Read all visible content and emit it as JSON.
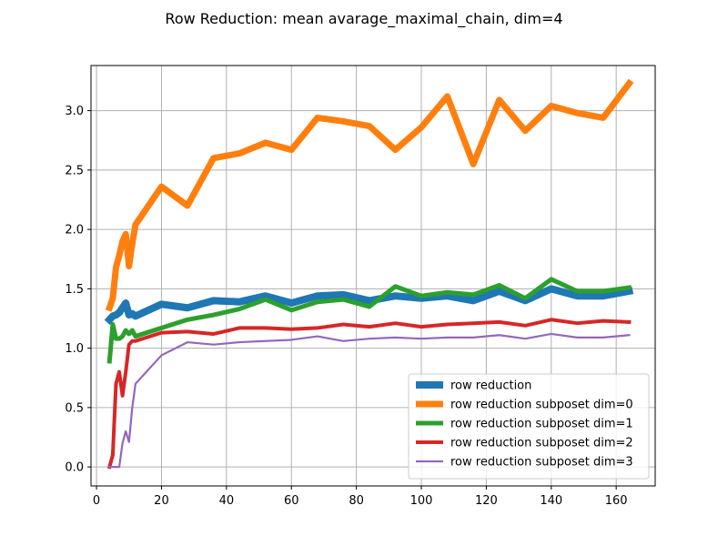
{
  "chart_data": {
    "type": "line",
    "title": "Row Reduction: mean avarage_maximal_chain, dim=4",
    "xlabel": "",
    "ylabel": "",
    "xlim": [
      -1.7,
      172.0
    ],
    "ylim": [
      -0.16,
      3.38
    ],
    "xticks": [
      0,
      20,
      40,
      60,
      80,
      100,
      120,
      140,
      160
    ],
    "yticks": [
      0.0,
      0.5,
      1.0,
      1.5,
      2.0,
      2.5,
      3.0
    ],
    "grid": true,
    "legend_position": "lower-right",
    "series": [
      {
        "name": "row reduction",
        "color": "#1f77b4",
        "width": 8,
        "points": [
          [
            4,
            1.24
          ],
          [
            5,
            1.27
          ],
          [
            6,
            1.28
          ],
          [
            7,
            1.3
          ],
          [
            8,
            1.34
          ],
          [
            9,
            1.38
          ],
          [
            10,
            1.28
          ],
          [
            11,
            1.29
          ],
          [
            12,
            1.27
          ],
          [
            20,
            1.37
          ],
          [
            28,
            1.34
          ],
          [
            36,
            1.4
          ],
          [
            44,
            1.39
          ],
          [
            52,
            1.44
          ],
          [
            60,
            1.38
          ],
          [
            68,
            1.44
          ],
          [
            76,
            1.45
          ],
          [
            84,
            1.4
          ],
          [
            92,
            1.44
          ],
          [
            100,
            1.42
          ],
          [
            108,
            1.44
          ],
          [
            116,
            1.4
          ],
          [
            124,
            1.48
          ],
          [
            132,
            1.4
          ],
          [
            140,
            1.5
          ],
          [
            148,
            1.44
          ],
          [
            156,
            1.44
          ],
          [
            164,
            1.48
          ]
        ]
      },
      {
        "name": "row reduction subposet dim=0",
        "color": "#ff7f0e",
        "width": 7,
        "points": [
          [
            4,
            1.34
          ],
          [
            5,
            1.42
          ],
          [
            6,
            1.68
          ],
          [
            7,
            1.78
          ],
          [
            8,
            1.9
          ],
          [
            9,
            1.96
          ],
          [
            10,
            1.69
          ],
          [
            11,
            1.88
          ],
          [
            12,
            2.04
          ],
          [
            20,
            2.36
          ],
          [
            28,
            2.2
          ],
          [
            36,
            2.6
          ],
          [
            44,
            2.64
          ],
          [
            52,
            2.73
          ],
          [
            60,
            2.67
          ],
          [
            68,
            2.94
          ],
          [
            76,
            2.91
          ],
          [
            84,
            2.87
          ],
          [
            92,
            2.67
          ],
          [
            100,
            2.86
          ],
          [
            108,
            3.12
          ],
          [
            116,
            2.55
          ],
          [
            124,
            3.09
          ],
          [
            132,
            2.83
          ],
          [
            140,
            3.04
          ],
          [
            148,
            2.98
          ],
          [
            156,
            2.94
          ],
          [
            164,
            3.23
          ]
        ]
      },
      {
        "name": "row reduction subposet dim=1",
        "color": "#2ca02c",
        "width": 5,
        "points": [
          [
            4,
            0.89
          ],
          [
            5,
            1.2
          ],
          [
            6,
            1.08
          ],
          [
            7,
            1.08
          ],
          [
            8,
            1.1
          ],
          [
            9,
            1.15
          ],
          [
            10,
            1.12
          ],
          [
            11,
            1.15
          ],
          [
            12,
            1.1
          ],
          [
            20,
            1.17
          ],
          [
            28,
            1.24
          ],
          [
            36,
            1.28
          ],
          [
            44,
            1.33
          ],
          [
            52,
            1.41
          ],
          [
            60,
            1.32
          ],
          [
            68,
            1.39
          ],
          [
            76,
            1.41
          ],
          [
            84,
            1.35
          ],
          [
            92,
            1.52
          ],
          [
            100,
            1.44
          ],
          [
            108,
            1.47
          ],
          [
            116,
            1.45
          ],
          [
            124,
            1.53
          ],
          [
            132,
            1.42
          ],
          [
            140,
            1.58
          ],
          [
            148,
            1.48
          ],
          [
            156,
            1.48
          ],
          [
            164,
            1.51
          ]
        ]
      },
      {
        "name": "row reduction subposet dim=2",
        "color": "#d62728",
        "width": 4,
        "points": [
          [
            4,
            0.0
          ],
          [
            5,
            0.1
          ],
          [
            6,
            0.7
          ],
          [
            7,
            0.8
          ],
          [
            8,
            0.6
          ],
          [
            9,
            0.8
          ],
          [
            10,
            1.03
          ],
          [
            11,
            1.06
          ],
          [
            12,
            1.06
          ],
          [
            20,
            1.13
          ],
          [
            28,
            1.14
          ],
          [
            36,
            1.12
          ],
          [
            44,
            1.17
          ],
          [
            52,
            1.17
          ],
          [
            60,
            1.16
          ],
          [
            68,
            1.17
          ],
          [
            76,
            1.2
          ],
          [
            84,
            1.18
          ],
          [
            92,
            1.21
          ],
          [
            100,
            1.18
          ],
          [
            108,
            1.2
          ],
          [
            116,
            1.21
          ],
          [
            124,
            1.22
          ],
          [
            132,
            1.19
          ],
          [
            140,
            1.24
          ],
          [
            148,
            1.21
          ],
          [
            156,
            1.23
          ],
          [
            164,
            1.22
          ]
        ]
      },
      {
        "name": "row reduction subposet dim=3",
        "color": "#9467bd",
        "width": 2.2,
        "points": [
          [
            4,
            0.0
          ],
          [
            5,
            0.0
          ],
          [
            6,
            0.0
          ],
          [
            7,
            0.0
          ],
          [
            8,
            0.2
          ],
          [
            9,
            0.3
          ],
          [
            10,
            0.21
          ],
          [
            11,
            0.5
          ],
          [
            12,
            0.7
          ],
          [
            20,
            0.94
          ],
          [
            28,
            1.05
          ],
          [
            36,
            1.03
          ],
          [
            44,
            1.05
          ],
          [
            52,
            1.06
          ],
          [
            60,
            1.07
          ],
          [
            68,
            1.1
          ],
          [
            76,
            1.06
          ],
          [
            84,
            1.08
          ],
          [
            92,
            1.09
          ],
          [
            100,
            1.08
          ],
          [
            108,
            1.09
          ],
          [
            116,
            1.09
          ],
          [
            124,
            1.11
          ],
          [
            132,
            1.08
          ],
          [
            140,
            1.12
          ],
          [
            148,
            1.09
          ],
          [
            156,
            1.09
          ],
          [
            164,
            1.11
          ]
        ]
      }
    ]
  }
}
